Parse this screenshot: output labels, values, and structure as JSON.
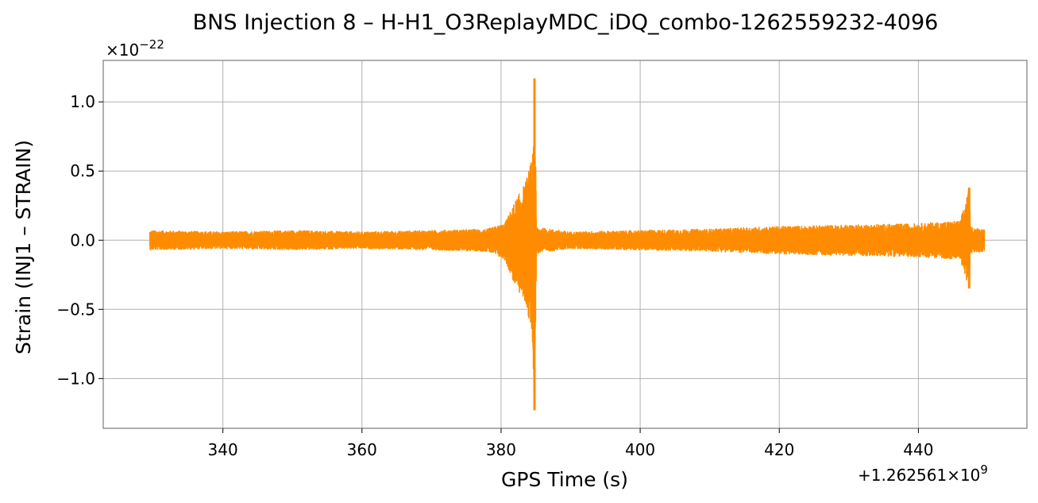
{
  "chart_data": {
    "type": "line",
    "title": "BNS Injection 8 – H-H1_O3ReplayMDC_iDQ_combo-1262559232-4096",
    "xlabel": "GPS Time (s)",
    "ylabel": "Strain (INJ1 – STRAIN)",
    "x_offset_label": "+1.262561×10",
    "x_offset_exponent": "9",
    "y_multiplier_label": "×10",
    "y_multiplier_exponent": "−22",
    "xlim": [
      322.8,
      455.6
    ],
    "ylim": [
      -1.36,
      1.3
    ],
    "xticks": [
      340,
      360,
      380,
      400,
      420,
      440
    ],
    "xtick_labels": [
      "340",
      "360",
      "380",
      "400",
      "420",
      "440"
    ],
    "yticks": [
      1.0,
      0.5,
      0.0,
      -0.5,
      -1.0
    ],
    "ytick_labels": [
      "1.0",
      "0.5",
      "0.0",
      "−0.5",
      "−1.0"
    ],
    "grid": true,
    "line_color": "#ff8c00",
    "series": [
      {
        "x": [
          329.5,
          340,
          350,
          360,
          370,
          378,
          380.5,
          382,
          383.5,
          384.5,
          384.8,
          385.1,
          385.5,
          390,
          400,
          410,
          420,
          430,
          440,
          446,
          447.3,
          447.5,
          447.8,
          449.5
        ],
        "envelope_max": [
          0.07,
          0.06,
          0.07,
          0.06,
          0.07,
          0.08,
          0.12,
          0.28,
          0.42,
          0.6,
          1.17,
          0.1,
          0.09,
          0.06,
          0.07,
          0.08,
          0.1,
          0.11,
          0.12,
          0.14,
          0.38,
          0.1,
          0.09,
          0.08
        ],
        "envelope_min": [
          -0.07,
          -0.06,
          -0.07,
          -0.06,
          -0.07,
          -0.08,
          -0.14,
          -0.33,
          -0.46,
          -0.7,
          -1.23,
          -0.1,
          -0.09,
          -0.06,
          -0.07,
          -0.08,
          -0.1,
          -0.11,
          -0.12,
          -0.14,
          -0.35,
          -0.1,
          -0.09,
          -0.08
        ]
      }
    ]
  }
}
